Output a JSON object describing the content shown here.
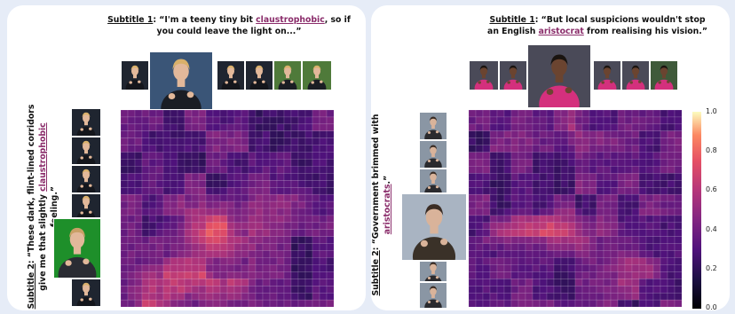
{
  "left": {
    "subtitle1": {
      "label": "Subtitle 1",
      "pre": ": “I'm a teeny tiny bit ",
      "keyword": "claustrophobic",
      "post": ", so if you could leave the light on...”"
    },
    "subtitle2": {
      "label": "Subtitle 2",
      "pre": ": “These dark, flint-lined corridors give me that slightly ",
      "keyword": "claustrophobic",
      "post": " feeling.”"
    }
  },
  "right": {
    "subtitle1": {
      "label": "Subtitle 1",
      "pre": ": “But local suspicions wouldn't stop an English ",
      "keyword": "aristocrat",
      "post": " from realising his vision.”"
    },
    "subtitle2": {
      "label": "Subtitle 2",
      "pre": ": “Government brimmed with ",
      "keyword": "aristocrats",
      "post": ".”"
    }
  },
  "colorbar": {
    "ticks": [
      "1.0",
      "0.8",
      "0.6",
      "0.4",
      "0.2",
      "0.0"
    ]
  },
  "colors": {
    "panel_bg": "#ffffff",
    "page_bg": "#e6ecf7",
    "keyword": "#8a2c6a"
  }
}
